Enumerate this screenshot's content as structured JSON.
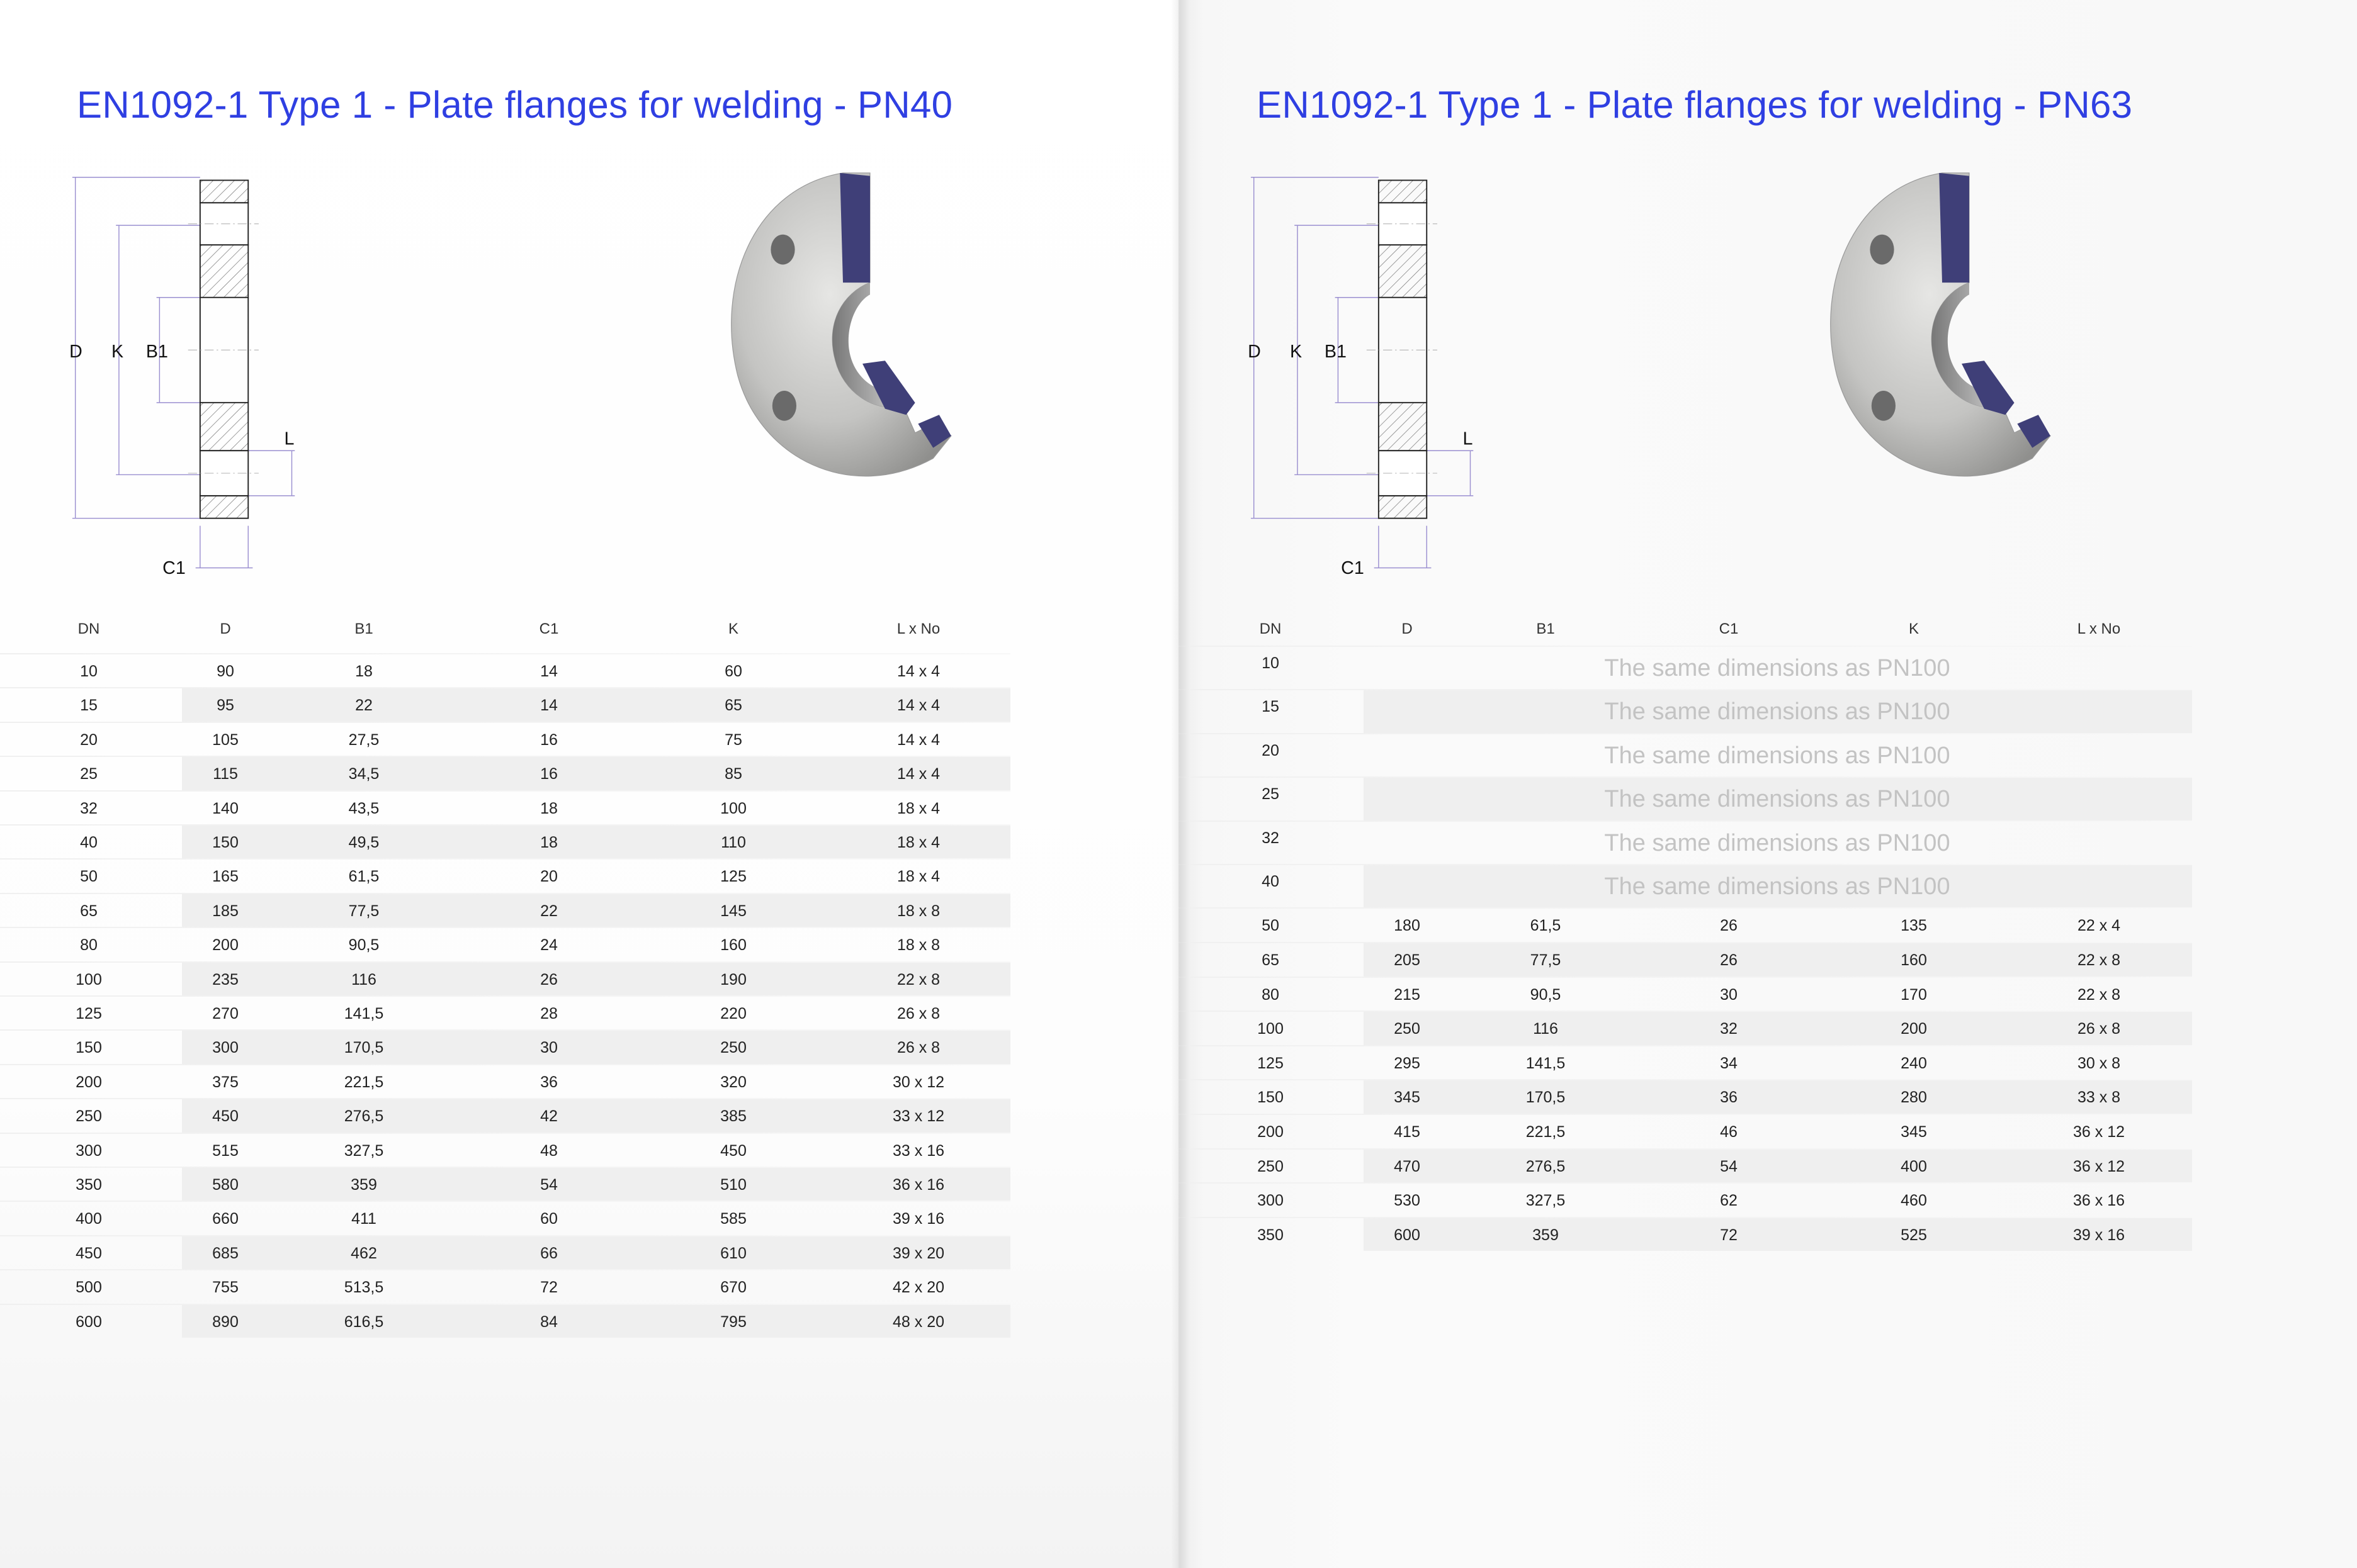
{
  "left": {
    "title": "EN1092-1 Type 1 - Plate flanges for welding - PN40",
    "diagram_labels": {
      "D": "D",
      "K": "K",
      "B1": "B1",
      "L": "L",
      "C1": "C1"
    },
    "columns": [
      "DN",
      "D",
      "B1",
      "C1",
      "K",
      "L x No"
    ],
    "rows": [
      [
        "10",
        "90",
        "18",
        "14",
        "60",
        "14 x 4"
      ],
      [
        "15",
        "95",
        "22",
        "14",
        "65",
        "14 x 4"
      ],
      [
        "20",
        "105",
        "27,5",
        "16",
        "75",
        "14 x 4"
      ],
      [
        "25",
        "115",
        "34,5",
        "16",
        "85",
        "14 x 4"
      ],
      [
        "32",
        "140",
        "43,5",
        "18",
        "100",
        "18 x 4"
      ],
      [
        "40",
        "150",
        "49,5",
        "18",
        "110",
        "18 x 4"
      ],
      [
        "50",
        "165",
        "61,5",
        "20",
        "125",
        "18 x 4"
      ],
      [
        "65",
        "185",
        "77,5",
        "22",
        "145",
        "18 x 8"
      ],
      [
        "80",
        "200",
        "90,5",
        "24",
        "160",
        "18 x 8"
      ],
      [
        "100",
        "235",
        "116",
        "26",
        "190",
        "22 x 8"
      ],
      [
        "125",
        "270",
        "141,5",
        "28",
        "220",
        "26 x 8"
      ],
      [
        "150",
        "300",
        "170,5",
        "30",
        "250",
        "26 x 8"
      ],
      [
        "200",
        "375",
        "221,5",
        "36",
        "320",
        "30 x 12"
      ],
      [
        "250",
        "450",
        "276,5",
        "42",
        "385",
        "33 x 12"
      ],
      [
        "300",
        "515",
        "327,5",
        "48",
        "450",
        "33 x 16"
      ],
      [
        "350",
        "580",
        "359",
        "54",
        "510",
        "36 x 16"
      ],
      [
        "400",
        "660",
        "411",
        "60",
        "585",
        "39 x 16"
      ],
      [
        "450",
        "685",
        "462",
        "66",
        "610",
        "39 x 20"
      ],
      [
        "500",
        "755",
        "513,5",
        "72",
        "670",
        "42 x 20"
      ],
      [
        "600",
        "890",
        "616,5",
        "84",
        "795",
        "48 x 20"
      ]
    ]
  },
  "right": {
    "title": "EN1092-1 Type 1 - Plate flanges for welding - PN63",
    "diagram_labels": {
      "D": "D",
      "K": "K",
      "B1": "B1",
      "L": "L",
      "C1": "C1"
    },
    "columns": [
      "DN",
      "D",
      "B1",
      "C1",
      "K",
      "L x No"
    ],
    "same_rows": [
      {
        "dn": "10",
        "note": "The same dimensions as PN100"
      },
      {
        "dn": "15",
        "note": "The same dimensions as PN100"
      },
      {
        "dn": "20",
        "note": "The same dimensions as PN100"
      },
      {
        "dn": "25",
        "note": "The same dimensions as PN100"
      },
      {
        "dn": "32",
        "note": "The same dimensions as PN100"
      },
      {
        "dn": "40",
        "note": "The same dimensions as PN100"
      }
    ],
    "rows": [
      [
        "50",
        "180",
        "61,5",
        "26",
        "135",
        "22 x 4"
      ],
      [
        "65",
        "205",
        "77,5",
        "26",
        "160",
        "22 x 8"
      ],
      [
        "80",
        "215",
        "90,5",
        "30",
        "170",
        "22 x 8"
      ],
      [
        "100",
        "250",
        "116",
        "32",
        "200",
        "26 x 8"
      ],
      [
        "125",
        "295",
        "141,5",
        "34",
        "240",
        "30 x 8"
      ],
      [
        "150",
        "345",
        "170,5",
        "36",
        "280",
        "33 x 8"
      ],
      [
        "200",
        "415",
        "221,5",
        "46",
        "345",
        "36 x 12"
      ],
      [
        "250",
        "470",
        "276,5",
        "54",
        "400",
        "36 x 12"
      ],
      [
        "300",
        "530",
        "327,5",
        "62",
        "460",
        "36 x 16"
      ],
      [
        "350",
        "600",
        "359",
        "72",
        "525",
        "39 x 16"
      ]
    ]
  },
  "colors": {
    "title": "#2f3fe2",
    "stripe": "#efefef",
    "note": "#c3c3c3",
    "flange_cut_face": "#3f3f78"
  }
}
